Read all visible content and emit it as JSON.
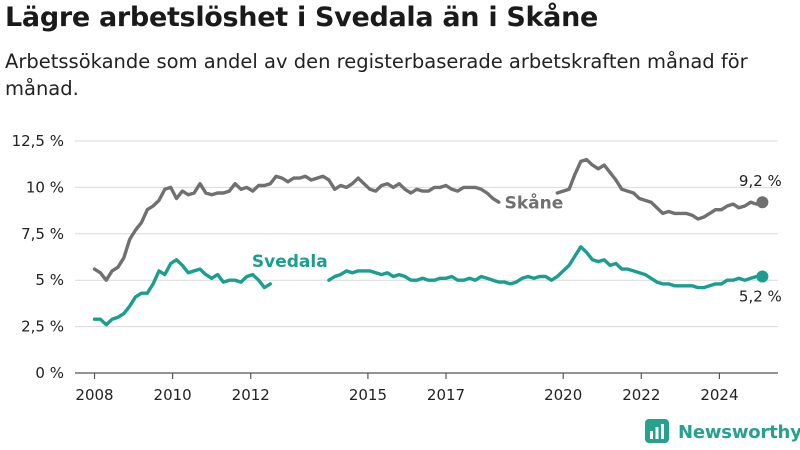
{
  "title": "Lägre arbetslöshet i Svedala än i Skåne",
  "subtitle": "Arbetssökande som andel av den registerbaserade arbetskraften månad för månad.",
  "brand": {
    "name": "Newsworthy",
    "color": "#25a18e"
  },
  "chart_data": {
    "type": "line",
    "ylim": [
      0,
      12.5
    ],
    "y_ticks": [
      {
        "value": 12.5,
        "label": "12,5 %"
      },
      {
        "value": 10,
        "label": "10 %"
      },
      {
        "value": 7.5,
        "label": "7,5 %"
      },
      {
        "value": 5,
        "label": "5 %"
      },
      {
        "value": 2.5,
        "label": "2,5 %"
      },
      {
        "value": 0,
        "label": "0 %"
      }
    ],
    "xlim": [
      2007.5,
      2025.5
    ],
    "x_ticks": [
      {
        "value": 2008,
        "label": "2008"
      },
      {
        "value": 2010,
        "label": "2010"
      },
      {
        "value": 2012,
        "label": "2012"
      },
      {
        "value": 2015,
        "label": "2015"
      },
      {
        "value": 2017,
        "label": "2017"
      },
      {
        "value": 2020,
        "label": "2020"
      },
      {
        "value": 2022,
        "label": "2022"
      },
      {
        "value": 2024,
        "label": "2024"
      }
    ],
    "grid": true,
    "series": [
      {
        "name": "Skåne",
        "color": "#707070",
        "end_label": "9,2 %",
        "points": [
          [
            2008.0,
            5.6
          ],
          [
            2008.15,
            5.4
          ],
          [
            2008.3,
            5.0
          ],
          [
            2008.45,
            5.5
          ],
          [
            2008.6,
            5.7
          ],
          [
            2008.75,
            6.2
          ],
          [
            2008.9,
            7.2
          ],
          [
            2009.05,
            7.7
          ],
          [
            2009.2,
            8.1
          ],
          [
            2009.35,
            8.8
          ],
          [
            2009.5,
            9.0
          ],
          [
            2009.65,
            9.3
          ],
          [
            2009.8,
            9.9
          ],
          [
            2009.95,
            10.0
          ],
          [
            2010.1,
            9.4
          ],
          [
            2010.25,
            9.8
          ],
          [
            2010.4,
            9.6
          ],
          [
            2010.55,
            9.7
          ],
          [
            2010.7,
            10.2
          ],
          [
            2010.85,
            9.7
          ],
          [
            2011.0,
            9.6
          ],
          [
            2011.15,
            9.7
          ],
          [
            2011.3,
            9.7
          ],
          [
            2011.45,
            9.8
          ],
          [
            2011.6,
            10.2
          ],
          [
            2011.75,
            9.9
          ],
          [
            2011.9,
            10.0
          ],
          [
            2012.05,
            9.8
          ],
          [
            2012.2,
            10.1
          ],
          [
            2012.35,
            10.1
          ],
          [
            2012.5,
            10.2
          ],
          [
            2012.65,
            10.6
          ],
          [
            2012.8,
            10.5
          ],
          [
            2012.95,
            10.3
          ],
          [
            2013.1,
            10.5
          ],
          [
            2013.25,
            10.5
          ],
          [
            2013.4,
            10.6
          ],
          [
            2013.55,
            10.4
          ],
          [
            2013.7,
            10.5
          ],
          [
            2013.85,
            10.6
          ],
          [
            2014.0,
            10.4
          ],
          [
            2014.15,
            9.9
          ],
          [
            2014.3,
            10.1
          ],
          [
            2014.45,
            10.0
          ],
          [
            2014.6,
            10.2
          ],
          [
            2014.75,
            10.5
          ],
          [
            2014.9,
            10.2
          ],
          [
            2015.05,
            9.9
          ],
          [
            2015.2,
            9.8
          ],
          [
            2015.35,
            10.1
          ],
          [
            2015.5,
            10.2
          ],
          [
            2015.65,
            10.0
          ],
          [
            2015.8,
            10.2
          ],
          [
            2015.95,
            9.9
          ],
          [
            2016.1,
            9.7
          ],
          [
            2016.25,
            9.9
          ],
          [
            2016.4,
            9.8
          ],
          [
            2016.55,
            9.8
          ],
          [
            2016.7,
            10.0
          ],
          [
            2016.85,
            10.0
          ],
          [
            2017.0,
            10.1
          ],
          [
            2017.15,
            9.9
          ],
          [
            2017.3,
            9.8
          ],
          [
            2017.45,
            10.0
          ],
          [
            2017.6,
            10.0
          ],
          [
            2017.75,
            10.0
          ],
          [
            2017.9,
            9.9
          ],
          [
            2018.05,
            9.7
          ],
          [
            2018.2,
            9.4
          ],
          [
            2018.35,
            9.2
          ],
          null,
          [
            2019.85,
            9.7
          ],
          [
            2020.0,
            9.8
          ],
          [
            2020.15,
            9.9
          ],
          [
            2020.3,
            10.7
          ],
          [
            2020.45,
            11.4
          ],
          [
            2020.6,
            11.5
          ],
          [
            2020.75,
            11.2
          ],
          [
            2020.9,
            11.0
          ],
          [
            2021.05,
            11.2
          ],
          [
            2021.2,
            10.8
          ],
          [
            2021.35,
            10.4
          ],
          [
            2021.5,
            9.9
          ],
          [
            2021.65,
            9.8
          ],
          [
            2021.8,
            9.7
          ],
          [
            2021.95,
            9.4
          ],
          [
            2022.1,
            9.3
          ],
          [
            2022.25,
            9.2
          ],
          [
            2022.4,
            8.9
          ],
          [
            2022.55,
            8.6
          ],
          [
            2022.7,
            8.7
          ],
          [
            2022.85,
            8.6
          ],
          [
            2023.0,
            8.6
          ],
          [
            2023.15,
            8.6
          ],
          [
            2023.3,
            8.5
          ],
          [
            2023.45,
            8.3
          ],
          [
            2023.6,
            8.4
          ],
          [
            2023.75,
            8.6
          ],
          [
            2023.9,
            8.8
          ],
          [
            2024.05,
            8.8
          ],
          [
            2024.2,
            9.0
          ],
          [
            2024.35,
            9.1
          ],
          [
            2024.5,
            8.9
          ],
          [
            2024.65,
            9.0
          ],
          [
            2024.8,
            9.2
          ],
          [
            2024.95,
            9.1
          ],
          [
            2025.1,
            9.2
          ]
        ]
      },
      {
        "name": "Svedala",
        "color": "#1a9e8f",
        "end_label": "5,2 %",
        "points": [
          [
            2008.0,
            2.9
          ],
          [
            2008.15,
            2.9
          ],
          [
            2008.3,
            2.6
          ],
          [
            2008.45,
            2.9
          ],
          [
            2008.6,
            3.0
          ],
          [
            2008.75,
            3.2
          ],
          [
            2008.9,
            3.6
          ],
          [
            2009.05,
            4.1
          ],
          [
            2009.2,
            4.3
          ],
          [
            2009.35,
            4.3
          ],
          [
            2009.5,
            4.8
          ],
          [
            2009.65,
            5.5
          ],
          [
            2009.8,
            5.3
          ],
          [
            2009.95,
            5.9
          ],
          [
            2010.1,
            6.1
          ],
          [
            2010.25,
            5.8
          ],
          [
            2010.4,
            5.4
          ],
          [
            2010.55,
            5.5
          ],
          [
            2010.7,
            5.6
          ],
          [
            2010.85,
            5.3
          ],
          [
            2011.0,
            5.1
          ],
          [
            2011.15,
            5.3
          ],
          [
            2011.3,
            4.9
          ],
          [
            2011.45,
            5.0
          ],
          [
            2011.6,
            5.0
          ],
          [
            2011.75,
            4.9
          ],
          [
            2011.9,
            5.2
          ],
          [
            2012.05,
            5.3
          ],
          [
            2012.2,
            5.0
          ],
          [
            2012.35,
            4.6
          ],
          [
            2012.5,
            4.8
          ],
          null,
          [
            2014.0,
            5.0
          ],
          [
            2014.15,
            5.2
          ],
          [
            2014.3,
            5.3
          ],
          [
            2014.45,
            5.5
          ],
          [
            2014.6,
            5.4
          ],
          [
            2014.75,
            5.5
          ],
          [
            2014.9,
            5.5
          ],
          [
            2015.05,
            5.5
          ],
          [
            2015.2,
            5.4
          ],
          [
            2015.35,
            5.3
          ],
          [
            2015.5,
            5.4
          ],
          [
            2015.65,
            5.2
          ],
          [
            2015.8,
            5.3
          ],
          [
            2015.95,
            5.2
          ],
          [
            2016.1,
            5.0
          ],
          [
            2016.25,
            5.0
          ],
          [
            2016.4,
            5.1
          ],
          [
            2016.55,
            5.0
          ],
          [
            2016.7,
            5.0
          ],
          [
            2016.85,
            5.1
          ],
          [
            2017.0,
            5.1
          ],
          [
            2017.15,
            5.2
          ],
          [
            2017.3,
            5.0
          ],
          [
            2017.45,
            5.0
          ],
          [
            2017.6,
            5.1
          ],
          [
            2017.75,
            5.0
          ],
          [
            2017.9,
            5.2
          ],
          [
            2018.05,
            5.1
          ],
          [
            2018.2,
            5.0
          ],
          [
            2018.35,
            4.9
          ],
          [
            2018.5,
            4.9
          ],
          [
            2018.65,
            4.8
          ],
          [
            2018.8,
            4.9
          ],
          [
            2018.95,
            5.1
          ],
          [
            2019.1,
            5.2
          ],
          [
            2019.25,
            5.1
          ],
          [
            2019.4,
            5.2
          ],
          [
            2019.55,
            5.2
          ],
          [
            2019.7,
            5.0
          ],
          [
            2019.85,
            5.2
          ],
          [
            2020.0,
            5.5
          ],
          [
            2020.15,
            5.8
          ],
          [
            2020.3,
            6.3
          ],
          [
            2020.45,
            6.8
          ],
          [
            2020.6,
            6.5
          ],
          [
            2020.75,
            6.1
          ],
          [
            2020.9,
            6.0
          ],
          [
            2021.05,
            6.1
          ],
          [
            2021.2,
            5.8
          ],
          [
            2021.35,
            5.9
          ],
          [
            2021.5,
            5.6
          ],
          [
            2021.65,
            5.6
          ],
          [
            2021.8,
            5.5
          ],
          [
            2021.95,
            5.4
          ],
          [
            2022.1,
            5.3
          ],
          [
            2022.25,
            5.1
          ],
          [
            2022.4,
            4.9
          ],
          [
            2022.55,
            4.8
          ],
          [
            2022.7,
            4.8
          ],
          [
            2022.85,
            4.7
          ],
          [
            2023.0,
            4.7
          ],
          [
            2023.15,
            4.7
          ],
          [
            2023.3,
            4.7
          ],
          [
            2023.45,
            4.6
          ],
          [
            2023.6,
            4.6
          ],
          [
            2023.75,
            4.7
          ],
          [
            2023.9,
            4.8
          ],
          [
            2024.05,
            4.8
          ],
          [
            2024.2,
            5.0
          ],
          [
            2024.35,
            5.0
          ],
          [
            2024.5,
            5.1
          ],
          [
            2024.65,
            5.0
          ],
          [
            2024.8,
            5.1
          ],
          [
            2024.95,
            5.2
          ],
          [
            2025.1,
            5.2
          ]
        ]
      }
    ]
  }
}
